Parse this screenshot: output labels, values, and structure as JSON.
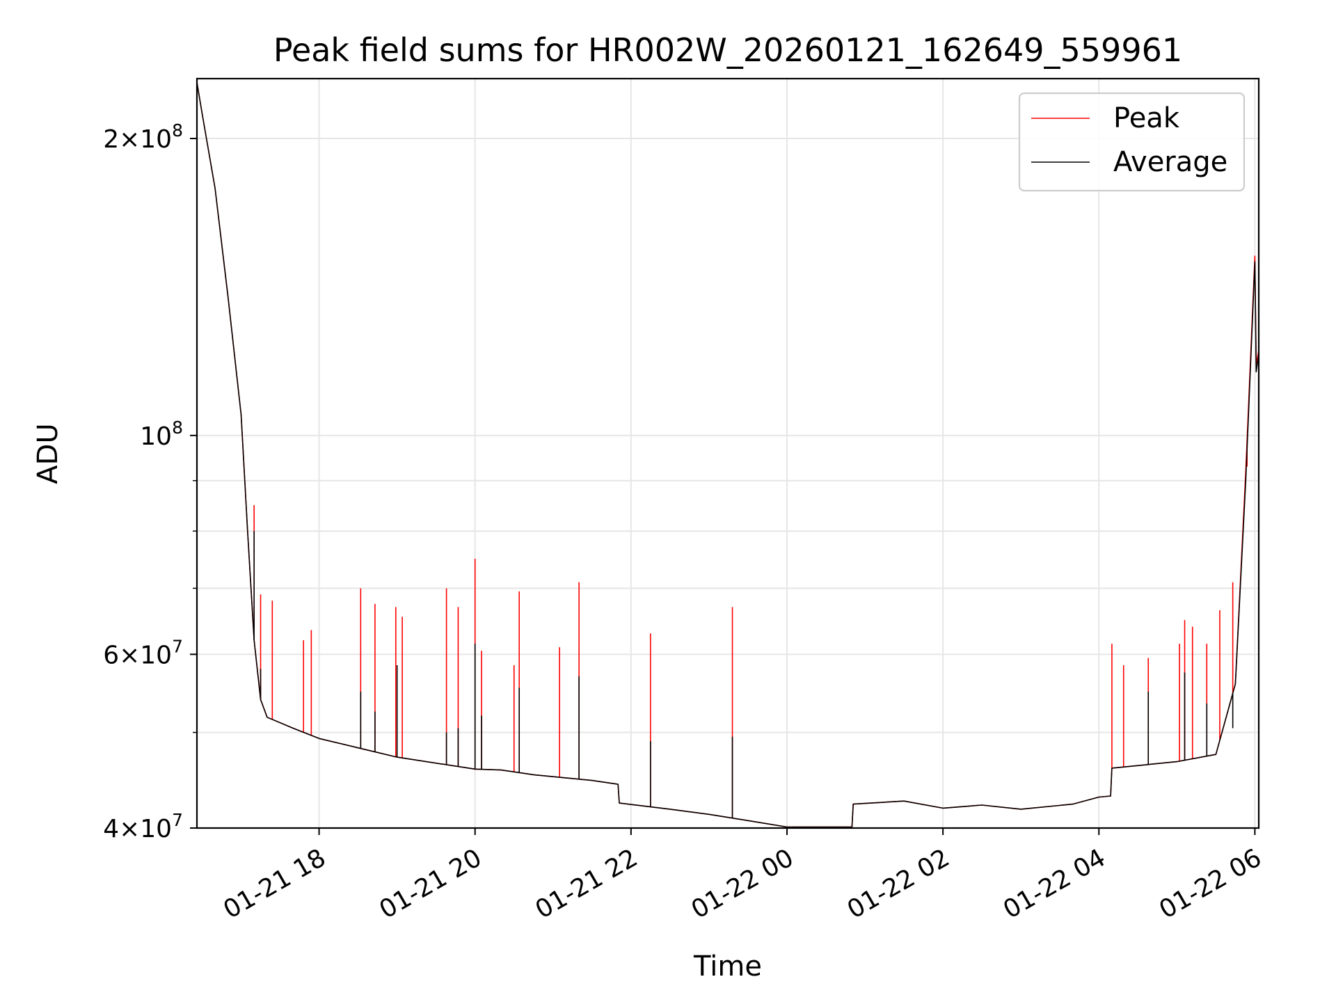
{
  "chart_data": {
    "type": "line",
    "title": "Peak field sums for HR002W_20260121_162649_559961",
    "xlabel": "Time",
    "ylabel": "ADU",
    "y_scale": "log",
    "ylim": [
      40000000,
      230000000
    ],
    "xlim": [
      "2026-01-21 16:26",
      "2026-01-22 06:03"
    ],
    "grid": true,
    "legend_position": "top-right",
    "x_ticks": [
      {
        "t": "2026-01-21 18:00",
        "label": "01-21 18"
      },
      {
        "t": "2026-01-21 20:00",
        "label": "01-21 20"
      },
      {
        "t": "2026-01-21 22:00",
        "label": "01-21 22"
      },
      {
        "t": "2026-01-22 00:00",
        "label": "01-22 00"
      },
      {
        "t": "2026-01-22 02:00",
        "label": "01-22 02"
      },
      {
        "t": "2026-01-22 04:00",
        "label": "01-22 04"
      },
      {
        "t": "2026-01-22 06:00",
        "label": "01-22 06"
      }
    ],
    "y_ticks": [
      {
        "value": 40000000,
        "mant": "4",
        "exp": "7"
      },
      {
        "value": 60000000,
        "mant": "6",
        "exp": "7"
      },
      {
        "value": 100000000,
        "mant": "",
        "exp": "8"
      },
      {
        "value": 200000000,
        "mant": "2",
        "exp": "8"
      }
    ],
    "y_minor_ticks": [
      50000000,
      70000000,
      80000000,
      90000000
    ],
    "series": [
      {
        "name": "Peak",
        "color": "#ff0000",
        "points": [
          [
            "2026-01-21 16:26",
            228000000
          ],
          [
            "2026-01-21 16:30",
            212000000
          ],
          [
            "2026-01-21 16:40",
            178000000
          ],
          [
            "2026-01-21 16:50",
            138000000
          ],
          [
            "2026-01-21 17:00",
            105000000
          ],
          [
            "2026-01-21 17:05",
            80000000
          ],
          [
            "2026-01-21 17:10",
            62000000
          ],
          [
            "2026-01-21 17:15",
            54000000
          ],
          [
            "2026-01-21 17:20",
            51800000
          ],
          [
            "2026-01-21 17:40",
            50500000
          ],
          [
            "2026-01-21 18:00",
            49300000
          ],
          [
            "2026-01-21 19:00",
            47200000
          ],
          [
            "2026-01-21 20:00",
            45900000
          ],
          [
            "2026-01-21 20:20",
            45800000
          ],
          [
            "2026-01-21 20:45",
            45300000
          ],
          [
            "2026-01-21 21:30",
            44700000
          ],
          [
            "2026-01-21 21:50",
            44300000
          ],
          [
            "2026-01-21 21:51",
            42400000
          ],
          [
            "2026-01-21 22:30",
            41800000
          ],
          [
            "2026-01-21 23:00",
            41300000
          ],
          [
            "2026-01-21 23:30",
            40700000
          ],
          [
            "2026-01-22 00:00",
            40100000
          ],
          [
            "2026-01-22 00:50",
            40100000
          ],
          [
            "2026-01-22 00:51",
            42300000
          ],
          [
            "2026-01-22 01:30",
            42600000
          ],
          [
            "2026-01-22 02:00",
            41900000
          ],
          [
            "2026-01-22 02:30",
            42200000
          ],
          [
            "2026-01-22 03:00",
            41800000
          ],
          [
            "2026-01-22 03:40",
            42300000
          ],
          [
            "2026-01-22 04:00",
            43000000
          ],
          [
            "2026-01-22 04:09",
            43100000
          ],
          [
            "2026-01-22 04:10",
            46000000
          ],
          [
            "2026-01-22 05:00",
            46700000
          ],
          [
            "2026-01-22 05:30",
            47500000
          ],
          [
            "2026-01-22 05:45",
            56000000
          ],
          [
            "2026-01-22 05:53",
            92000000
          ],
          [
            "2026-01-22 06:00",
            152000000
          ],
          [
            "2026-01-22 06:01",
            118000000
          ],
          [
            "2026-01-22 06:03",
            122000000
          ]
        ],
        "spikes": [
          [
            "2026-01-21 17:10",
            85000000
          ],
          [
            "2026-01-21 17:15",
            69000000
          ],
          [
            "2026-01-21 17:24",
            68000000
          ],
          [
            "2026-01-21 17:48",
            62000000
          ],
          [
            "2026-01-21 17:54",
            63500000
          ],
          [
            "2026-01-21 18:32",
            70000000
          ],
          [
            "2026-01-21 18:43",
            67500000
          ],
          [
            "2026-01-21 18:59",
            67000000
          ],
          [
            "2026-01-21 19:04",
            65500000
          ],
          [
            "2026-01-21 19:38",
            70000000
          ],
          [
            "2026-01-21 19:47",
            67000000
          ],
          [
            "2026-01-21 20:00",
            75000000
          ],
          [
            "2026-01-21 20:05",
            60500000
          ],
          [
            "2026-01-21 20:30",
            58500000
          ],
          [
            "2026-01-21 20:34",
            69500000
          ],
          [
            "2026-01-21 21:05",
            61000000
          ],
          [
            "2026-01-21 21:20",
            71000000
          ],
          [
            "2026-01-21 22:15",
            63000000
          ],
          [
            "2026-01-21 23:18",
            67000000
          ],
          [
            "2026-01-22 04:10",
            61500000
          ],
          [
            "2026-01-22 04:19",
            58500000
          ],
          [
            "2026-01-22 04:38",
            59500000
          ],
          [
            "2026-01-22 05:02",
            61500000
          ],
          [
            "2026-01-22 05:06",
            65000000
          ],
          [
            "2026-01-22 05:12",
            64000000
          ],
          [
            "2026-01-22 05:23",
            61500000
          ],
          [
            "2026-01-22 05:33",
            66500000
          ],
          [
            "2026-01-22 05:43",
            71000000
          ],
          [
            "2026-01-22 05:54",
            93000000
          ]
        ]
      },
      {
        "name": "Average",
        "color": "#000000",
        "points": [
          [
            "2026-01-21 16:26",
            228000000
          ],
          [
            "2026-01-21 16:30",
            212000000
          ],
          [
            "2026-01-21 16:40",
            178000000
          ],
          [
            "2026-01-21 16:50",
            138000000
          ],
          [
            "2026-01-21 17:00",
            105000000
          ],
          [
            "2026-01-21 17:05",
            80000000
          ],
          [
            "2026-01-21 17:10",
            62000000
          ],
          [
            "2026-01-21 17:15",
            54000000
          ],
          [
            "2026-01-21 17:20",
            51800000
          ],
          [
            "2026-01-21 17:40",
            50500000
          ],
          [
            "2026-01-21 18:00",
            49300000
          ],
          [
            "2026-01-21 19:00",
            47200000
          ],
          [
            "2026-01-21 20:00",
            45900000
          ],
          [
            "2026-01-21 20:20",
            45800000
          ],
          [
            "2026-01-21 20:45",
            45300000
          ],
          [
            "2026-01-21 21:30",
            44700000
          ],
          [
            "2026-01-21 21:50",
            44300000
          ],
          [
            "2026-01-21 21:51",
            42400000
          ],
          [
            "2026-01-21 22:30",
            41800000
          ],
          [
            "2026-01-21 23:00",
            41300000
          ],
          [
            "2026-01-21 23:30",
            40700000
          ],
          [
            "2026-01-22 00:00",
            40100000
          ],
          [
            "2026-01-22 00:50",
            40100000
          ],
          [
            "2026-01-22 00:51",
            42300000
          ],
          [
            "2026-01-22 01:30",
            42600000
          ],
          [
            "2026-01-22 02:00",
            41900000
          ],
          [
            "2026-01-22 02:30",
            42200000
          ],
          [
            "2026-01-22 03:00",
            41800000
          ],
          [
            "2026-01-22 03:40",
            42300000
          ],
          [
            "2026-01-22 04:00",
            43000000
          ],
          [
            "2026-01-22 04:09",
            43100000
          ],
          [
            "2026-01-22 04:10",
            46000000
          ],
          [
            "2026-01-22 05:00",
            46700000
          ],
          [
            "2026-01-22 05:30",
            47500000
          ],
          [
            "2026-01-22 05:45",
            56000000
          ],
          [
            "2026-01-22 05:53",
            90000000
          ],
          [
            "2026-01-22 06:00",
            150000000
          ],
          [
            "2026-01-22 06:01",
            116000000
          ],
          [
            "2026-01-22 06:03",
            121000000
          ]
        ],
        "spikes": [
          [
            "2026-01-21 17:10",
            80000000
          ],
          [
            "2026-01-21 17:15",
            58000000
          ],
          [
            "2026-01-21 18:32",
            55000000
          ],
          [
            "2026-01-21 18:43",
            52500000
          ],
          [
            "2026-01-21 19:00",
            58500000
          ],
          [
            "2026-01-21 19:38",
            50000000
          ],
          [
            "2026-01-21 19:47",
            50500000
          ],
          [
            "2026-01-21 20:00",
            61500000
          ],
          [
            "2026-01-21 20:05",
            52000000
          ],
          [
            "2026-01-21 20:34",
            55500000
          ],
          [
            "2026-01-21 21:20",
            57000000
          ],
          [
            "2026-01-21 22:15",
            49000000
          ],
          [
            "2026-01-21 23:18",
            49500000
          ],
          [
            "2026-01-22 04:38",
            55000000
          ],
          [
            "2026-01-22 05:06",
            57500000
          ],
          [
            "2026-01-22 05:23",
            53500000
          ],
          [
            "2026-01-22 05:43",
            50500000
          ]
        ]
      }
    ]
  }
}
